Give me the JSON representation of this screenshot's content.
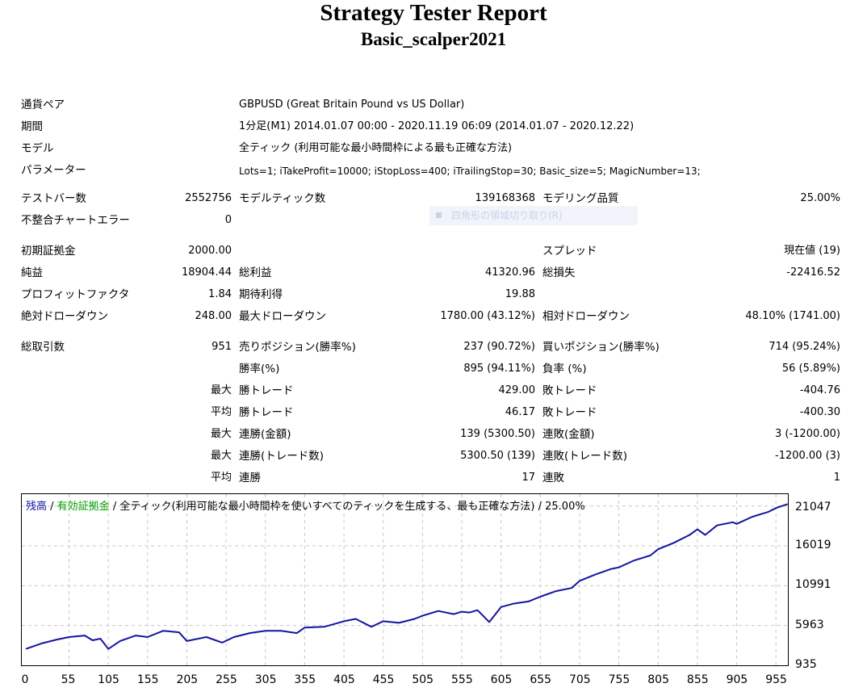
{
  "report": {
    "title": "Strategy Tester Report",
    "subtitle": "Basic_scalper2021"
  },
  "info": {
    "symbol_label": "通貨ペア",
    "symbol_value": "GBPUSD (Great Britain Pound vs US Dollar)",
    "period_label": "期間",
    "period_value": "1分足(M1) 2014.01.07 00:00 - 2020.11.19 06:09 (2014.01.07 - 2020.12.22)",
    "model_label": "モデル",
    "model_value": "全ティック (利用可能な最小時間枠による最も正確な方法)",
    "params_label": "パラメーター",
    "params_value": "Lots=1; iTakeProfit=10000; iStopLoss=400; iTrailingStop=30; Basic_size=5; MagicNumber=13;"
  },
  "stats": {
    "bars_label": "テストバー数",
    "bars_value": "2552756",
    "ticks_label": "モデルティック数",
    "ticks_value": "139168368",
    "quality_label": "モデリング品質",
    "quality_value": "25.00%",
    "mismatch_label": "不整合チャートエラー",
    "mismatch_value": "0",
    "deposit_label": "初期証拠金",
    "deposit_value": "2000.00",
    "spread_label": "スプレッド",
    "spread_value": "現在値 (19)",
    "net_label": "純益",
    "net_value": "18904.44",
    "gross_profit_label": "総利益",
    "gross_profit_value": "41320.96",
    "gross_loss_label": "総損失",
    "gross_loss_value": "-22416.52",
    "pf_label": "プロフィットファクタ",
    "pf_value": "1.84",
    "expected_label": "期待利得",
    "expected_value": "19.88",
    "abs_dd_label": "絶対ドローダウン",
    "abs_dd_value": "248.00",
    "max_dd_label": "最大ドローダウン",
    "max_dd_value": "1780.00 (43.12%)",
    "rel_dd_label": "相対ドローダウン",
    "rel_dd_value": "48.10% (1741.00)",
    "trades_label": "総取引数",
    "trades_value": "951",
    "short_label": "売りポジション(勝率%)",
    "short_value": "237 (90.72%)",
    "long_label": "買いポジション(勝率%)",
    "long_value": "714 (95.24%)",
    "win_rate_label": "勝率(%)",
    "win_rate_value": "895 (94.11%)",
    "loss_rate_label": "負率 (%)",
    "loss_rate_value": "56 (5.89%)",
    "max_word": "最大",
    "avg_word": "平均",
    "max_win_label": "勝トレード",
    "max_win_value": "429.00",
    "max_loss_label": "敗トレード",
    "max_loss_value": "-404.76",
    "avg_win_label": "勝トレード",
    "avg_win_value": "46.17",
    "avg_loss_label": "敗トレード",
    "avg_loss_value": "-400.30",
    "cons_win_money_label": "連勝(金額)",
    "cons_win_money_value": "139 (5300.50)",
    "cons_loss_money_label": "連敗(金額)",
    "cons_loss_money_value": "3 (-1200.00)",
    "cons_win_count_label": "連勝(トレード数)",
    "cons_win_count_value": "5300.50 (139)",
    "cons_loss_count_label": "連敗(トレード数)",
    "cons_loss_count_value": "-1200.00 (3)",
    "avg_cons_win_label": "連勝",
    "avg_cons_win_value": "17",
    "avg_cons_loss_label": "連敗",
    "avg_cons_loss_value": "1"
  },
  "ghost_menu": {
    "label": "四角形の領域切り取り(R)"
  },
  "legend": {
    "balance": "残高",
    "sep1": " / ",
    "equity": "有効証拠金",
    "rest": " / 全ティック(利用可能な最小時間枠を使いすべてのティックを生成する、最も正確な方法) / 25.00%",
    "balance_color": "#1010a0",
    "equity_color": "#00a000"
  },
  "chart_data": {
    "type": "line",
    "x_ticks": [
      "0",
      "55",
      "105",
      "155",
      "205",
      "255",
      "305",
      "355",
      "405",
      "455",
      "505",
      "555",
      "605",
      "655",
      "705",
      "755",
      "805",
      "855",
      "905",
      "955"
    ],
    "y_ticks": [
      "21047",
      "16019",
      "10991",
      "5963",
      "935"
    ],
    "xlim": [
      0,
      980
    ],
    "ylim": [
      935,
      22550
    ],
    "series": [
      {
        "name": "残高",
        "color": "#1414a0",
        "x": [
          0,
          20,
          40,
          55,
          75,
          85,
          95,
          105,
          120,
          140,
          155,
          175,
          195,
          205,
          230,
          250,
          265,
          285,
          305,
          325,
          345,
          355,
          380,
          405,
          420,
          440,
          455,
          475,
          495,
          505,
          525,
          545,
          555,
          565,
          575,
          590,
          605,
          620,
          640,
          655,
          675,
          695,
          705,
          725,
          745,
          755,
          775,
          795,
          805,
          825,
          845,
          855,
          865,
          880,
          900,
          905,
          925,
          945,
          955,
          970
        ],
        "y": [
          3000,
          3700,
          4200,
          4500,
          4700,
          4100,
          4300,
          3000,
          4000,
          4700,
          4500,
          5300,
          5100,
          4000,
          4500,
          3800,
          4500,
          5000,
          5300,
          5300,
          5000,
          5700,
          5800,
          6500,
          6800,
          5800,
          6500,
          6300,
          6800,
          7200,
          7800,
          7400,
          7700,
          7600,
          7900,
          6400,
          8300,
          8700,
          9000,
          9600,
          10300,
          10700,
          11600,
          12400,
          13100,
          13300,
          14200,
          14800,
          15600,
          16400,
          17400,
          18100,
          17400,
          18600,
          19000,
          18800,
          19700,
          20300,
          20800,
          21300
        ]
      }
    ],
    "grid": true
  }
}
